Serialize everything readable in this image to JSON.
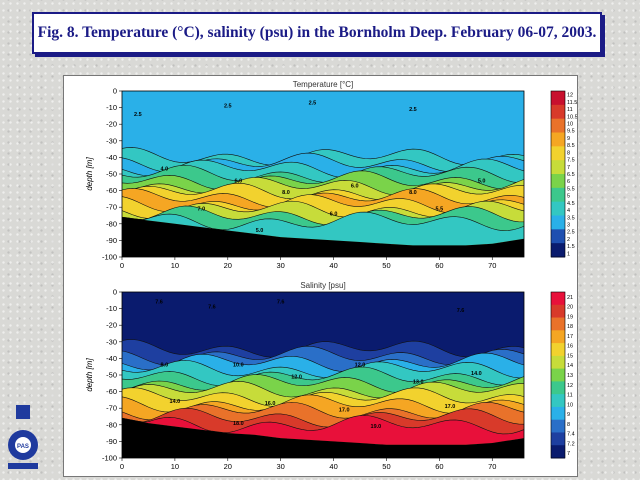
{
  "page": {
    "title": "Fig. 8. Temperature (°C), salinity (psu) in the Bornholm Deep. February 06-07, 2003."
  },
  "logo": {
    "text": "PAS",
    "colors": {
      "main": "#1f3a9e"
    }
  },
  "chart_data": [
    {
      "type": "heatmap",
      "title": "Temperature [°C]",
      "xlabel": "",
      "ylabel": "depth [m]",
      "xlim": [
        0,
        76
      ],
      "ylim": [
        -100,
        0
      ],
      "x_ticks": [
        0,
        10,
        20,
        30,
        40,
        50,
        60,
        70
      ],
      "y_ticks": [
        0,
        -10,
        -20,
        -30,
        -40,
        -50,
        -60,
        -70,
        -80,
        -90,
        -100
      ],
      "colorbar": {
        "ticks": [
          "12",
          "11.5",
          "11",
          "10.5",
          "10",
          "9.5",
          "9",
          "8.5",
          "8",
          "7.5",
          "7",
          "6.5",
          "6",
          "5.5",
          "5",
          "4.5",
          "4",
          "3.5",
          "3",
          "2.5",
          "2",
          "1.5",
          "1"
        ],
        "min": 1,
        "max": 12
      },
      "colors": [
        "#0a1b6e",
        "#1e4fb0",
        "#2ab0e8",
        "#33c7c2",
        "#3cc88c",
        "#7ad34a",
        "#c7dc3a",
        "#f2d22e",
        "#f5a623",
        "#e9722a",
        "#d83a2a",
        "#c8102e"
      ],
      "bottom_depth": [
        [
          0,
          -76
        ],
        [
          5,
          -78
        ],
        [
          10,
          -80
        ],
        [
          15,
          -82
        ],
        [
          20,
          -84
        ],
        [
          25,
          -86
        ],
        [
          30,
          -88
        ],
        [
          35,
          -89
        ],
        [
          40,
          -90
        ],
        [
          45,
          -91
        ],
        [
          50,
          -92
        ],
        [
          55,
          -93
        ],
        [
          60,
          -93
        ],
        [
          65,
          -93
        ],
        [
          70,
          -92
        ],
        [
          76,
          -89
        ]
      ],
      "labels": [
        {
          "x": 3,
          "y": -15,
          "text": "2.5"
        },
        {
          "x": 20,
          "y": -10,
          "text": "2.5"
        },
        {
          "x": 36,
          "y": -8,
          "text": "2.5"
        },
        {
          "x": 55,
          "y": -12,
          "text": "2.5"
        },
        {
          "x": 8,
          "y": -48,
          "text": "4.0"
        },
        {
          "x": 22,
          "y": -55,
          "text": "6.0"
        },
        {
          "x": 31,
          "y": -62,
          "text": "8.0"
        },
        {
          "x": 44,
          "y": -58,
          "text": "6.0"
        },
        {
          "x": 55,
          "y": -62,
          "text": "8.0"
        },
        {
          "x": 68,
          "y": -55,
          "text": "5.0"
        },
        {
          "x": 15,
          "y": -72,
          "text": "7.0"
        },
        {
          "x": 40,
          "y": -75,
          "text": "6.0"
        },
        {
          "x": 60,
          "y": -72,
          "text": "5.5"
        },
        {
          "x": 26,
          "y": -85,
          "text": "5.0"
        }
      ]
    },
    {
      "type": "heatmap",
      "title": "Salinity [psu]",
      "xlabel": "",
      "ylabel": "depth [m]",
      "xlim": [
        0,
        76
      ],
      "ylim": [
        -100,
        0
      ],
      "x_ticks": [
        0,
        10,
        20,
        30,
        40,
        50,
        60,
        70
      ],
      "y_ticks": [
        0,
        -10,
        -20,
        -30,
        -40,
        -50,
        -60,
        -70,
        -80,
        -90,
        -100
      ],
      "colorbar": {
        "ticks": [
          "21",
          "20",
          "19",
          "18",
          "17",
          "16",
          "15",
          "14",
          "13",
          "12",
          "11",
          "10",
          "9",
          "8",
          "7.4",
          "7.2",
          "7"
        ],
        "min": 7,
        "max": 21
      },
      "colors": [
        "#0a1b6e",
        "#1e3fa0",
        "#2a6fc8",
        "#2ab0e8",
        "#33c7c2",
        "#3cc88c",
        "#7ad34a",
        "#c7dc3a",
        "#f2d22e",
        "#f5a623",
        "#e9722a",
        "#d83a2a",
        "#e8103a"
      ],
      "bottom_depth": [
        [
          0,
          -76
        ],
        [
          5,
          -79
        ],
        [
          10,
          -81
        ],
        [
          15,
          -83
        ],
        [
          20,
          -85
        ],
        [
          25,
          -86
        ],
        [
          30,
          -88
        ],
        [
          35,
          -89
        ],
        [
          40,
          -90
        ],
        [
          45,
          -91
        ],
        [
          50,
          -92
        ],
        [
          55,
          -92
        ],
        [
          60,
          -92
        ],
        [
          65,
          -92
        ],
        [
          70,
          -91
        ],
        [
          76,
          -88
        ]
      ],
      "labels": [
        {
          "x": 7,
          "y": -7,
          "text": "7.6"
        },
        {
          "x": 17,
          "y": -10,
          "text": "7.6"
        },
        {
          "x": 30,
          "y": -7,
          "text": "7.6"
        },
        {
          "x": 64,
          "y": -12,
          "text": "7.6"
        },
        {
          "x": 8,
          "y": -45,
          "text": "8.0"
        },
        {
          "x": 22,
          "y": -45,
          "text": "10.0"
        },
        {
          "x": 33,
          "y": -52,
          "text": "12.0"
        },
        {
          "x": 45,
          "y": -45,
          "text": "12.0"
        },
        {
          "x": 56,
          "y": -55,
          "text": "13.0"
        },
        {
          "x": 67,
          "y": -50,
          "text": "14.0"
        },
        {
          "x": 10,
          "y": -67,
          "text": "14.0"
        },
        {
          "x": 28,
          "y": -68,
          "text": "16.0"
        },
        {
          "x": 42,
          "y": -72,
          "text": "17.0"
        },
        {
          "x": 62,
          "y": -70,
          "text": "17.0"
        },
        {
          "x": 22,
          "y": -80,
          "text": "18.0"
        },
        {
          "x": 48,
          "y": -82,
          "text": "19.0"
        }
      ]
    }
  ]
}
